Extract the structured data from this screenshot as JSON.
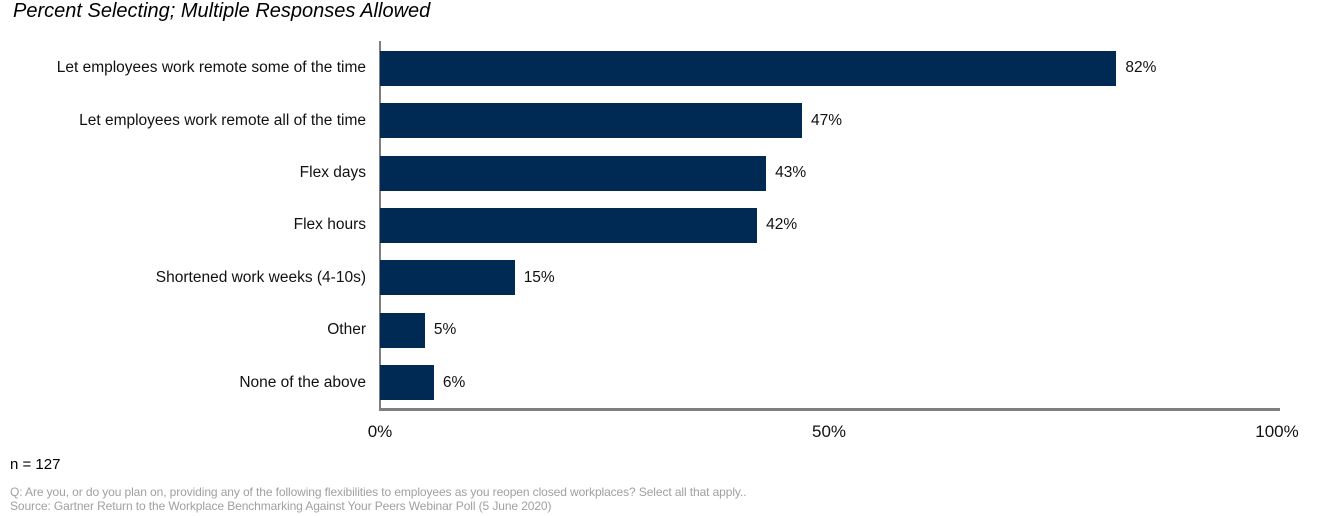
{
  "title": "Percent Selecting; Multiple Responses Allowed",
  "chart_data": {
    "type": "bar",
    "orientation": "horizontal",
    "title": "Percent Selecting; Multiple Responses Allowed",
    "categories": [
      "Let employees work remote some of the time",
      "Let employees work remote all of the time",
      "Flex days",
      "Flex hours",
      "Shortened work weeks (4-10s)",
      "Other",
      "None of the above"
    ],
    "values": [
      82,
      47,
      43,
      42,
      15,
      5,
      6
    ],
    "value_labels": [
      "82%",
      "47%",
      "43%",
      "42%",
      "15%",
      "5%",
      "6%"
    ],
    "xlabel": "",
    "ylabel": "",
    "xlim": [
      0,
      100
    ],
    "x_ticks": [
      "0%",
      "50%",
      "100%"
    ],
    "grid": false,
    "legend": false,
    "bar_color": "#002a54",
    "axis_color": "#7f7f7f"
  },
  "footer": {
    "sample_size": "n = 127",
    "question": "Q: Are you, or do you plan on, providing any of the following flexibilities to employees as you reopen closed workplaces? Select all that apply..",
    "source": "Source: Gartner Return to the Workplace Benchmarking Against Your Peers Webinar Poll (5 June 2020)"
  }
}
